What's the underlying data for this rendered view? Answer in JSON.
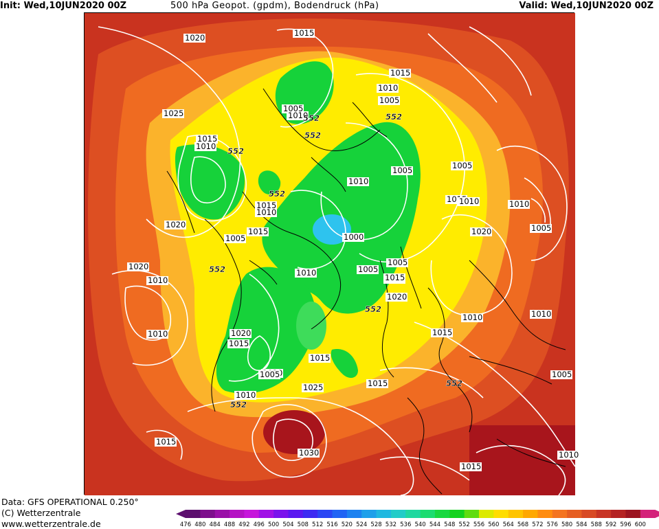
{
  "header": {
    "init": "Init: Wed,10JUN2020 00Z",
    "title": "500 hPa Geopot. (gpdm), Bodendruck (hPa)",
    "valid": "Valid: Wed,10JUN2020 00Z"
  },
  "footer": {
    "data_source": "Data: GFS OPERATIONAL 0.250°",
    "copyright": "(C) Wetterzentrale",
    "website": "www.wetterzentrale.de"
  },
  "map": {
    "isobar_labels": [
      "1020",
      "1015",
      "1025",
      "1015",
      "1010",
      "1005",
      "1010",
      "552",
      "552",
      "552",
      "1015",
      "1010",
      "1005",
      "552",
      "1010",
      "1005",
      "1005",
      "1015",
      "1010",
      "1000",
      "552",
      "1015",
      "1005",
      "1015",
      "1010",
      "1020",
      "1010",
      "1005",
      "552",
      "1020",
      "1015",
      "552",
      "1010",
      "1020",
      "1005",
      "1015",
      "1010",
      "552",
      "1015",
      "1010",
      "1005",
      "1015",
      "1020",
      "1020",
      "552",
      "1020",
      "1005",
      "1010",
      "1015",
      "552",
      "1025",
      "1030",
      "1015",
      "1010",
      "1015",
      "1010",
      "1010",
      "1005",
      "1015"
    ],
    "colors": {
      "very_low": "#2ec3ee",
      "low": "#16d23a",
      "mid_low": "#ffec00",
      "mid": "#fbb32b",
      "mid_high": "#ef6b21",
      "high": "#cf3a21",
      "very_high": "#a8151c",
      "isobar": "#ffffff",
      "coast": "#000000"
    }
  },
  "scale": {
    "labels": [
      "476",
      "480",
      "484",
      "488",
      "492",
      "496",
      "500",
      "504",
      "508",
      "512",
      "516",
      "520",
      "524",
      "528",
      "532",
      "536",
      "540",
      "544",
      "548",
      "552",
      "556",
      "560",
      "564",
      "568",
      "572",
      "576",
      "580",
      "584",
      "588",
      "592",
      "596",
      "600"
    ],
    "colors": [
      "#5c0f6e",
      "#7d0f8c",
      "#9a10a8",
      "#b512c4",
      "#c615db",
      "#a010e6",
      "#7a12ec",
      "#5a18f0",
      "#3c2af2",
      "#2a46f4",
      "#2064f4",
      "#1d82f0",
      "#1ea0ea",
      "#20b8e0",
      "#22ccc8",
      "#20d8a0",
      "#1cdc70",
      "#18d840",
      "#14d21e",
      "#60dc10",
      "#dcea00",
      "#ffdd00",
      "#ffc400",
      "#ffa800",
      "#ff8c10",
      "#f47420",
      "#e65e22",
      "#d84a24",
      "#c83424",
      "#b42222",
      "#9c1420",
      "#d4227a"
    ]
  }
}
